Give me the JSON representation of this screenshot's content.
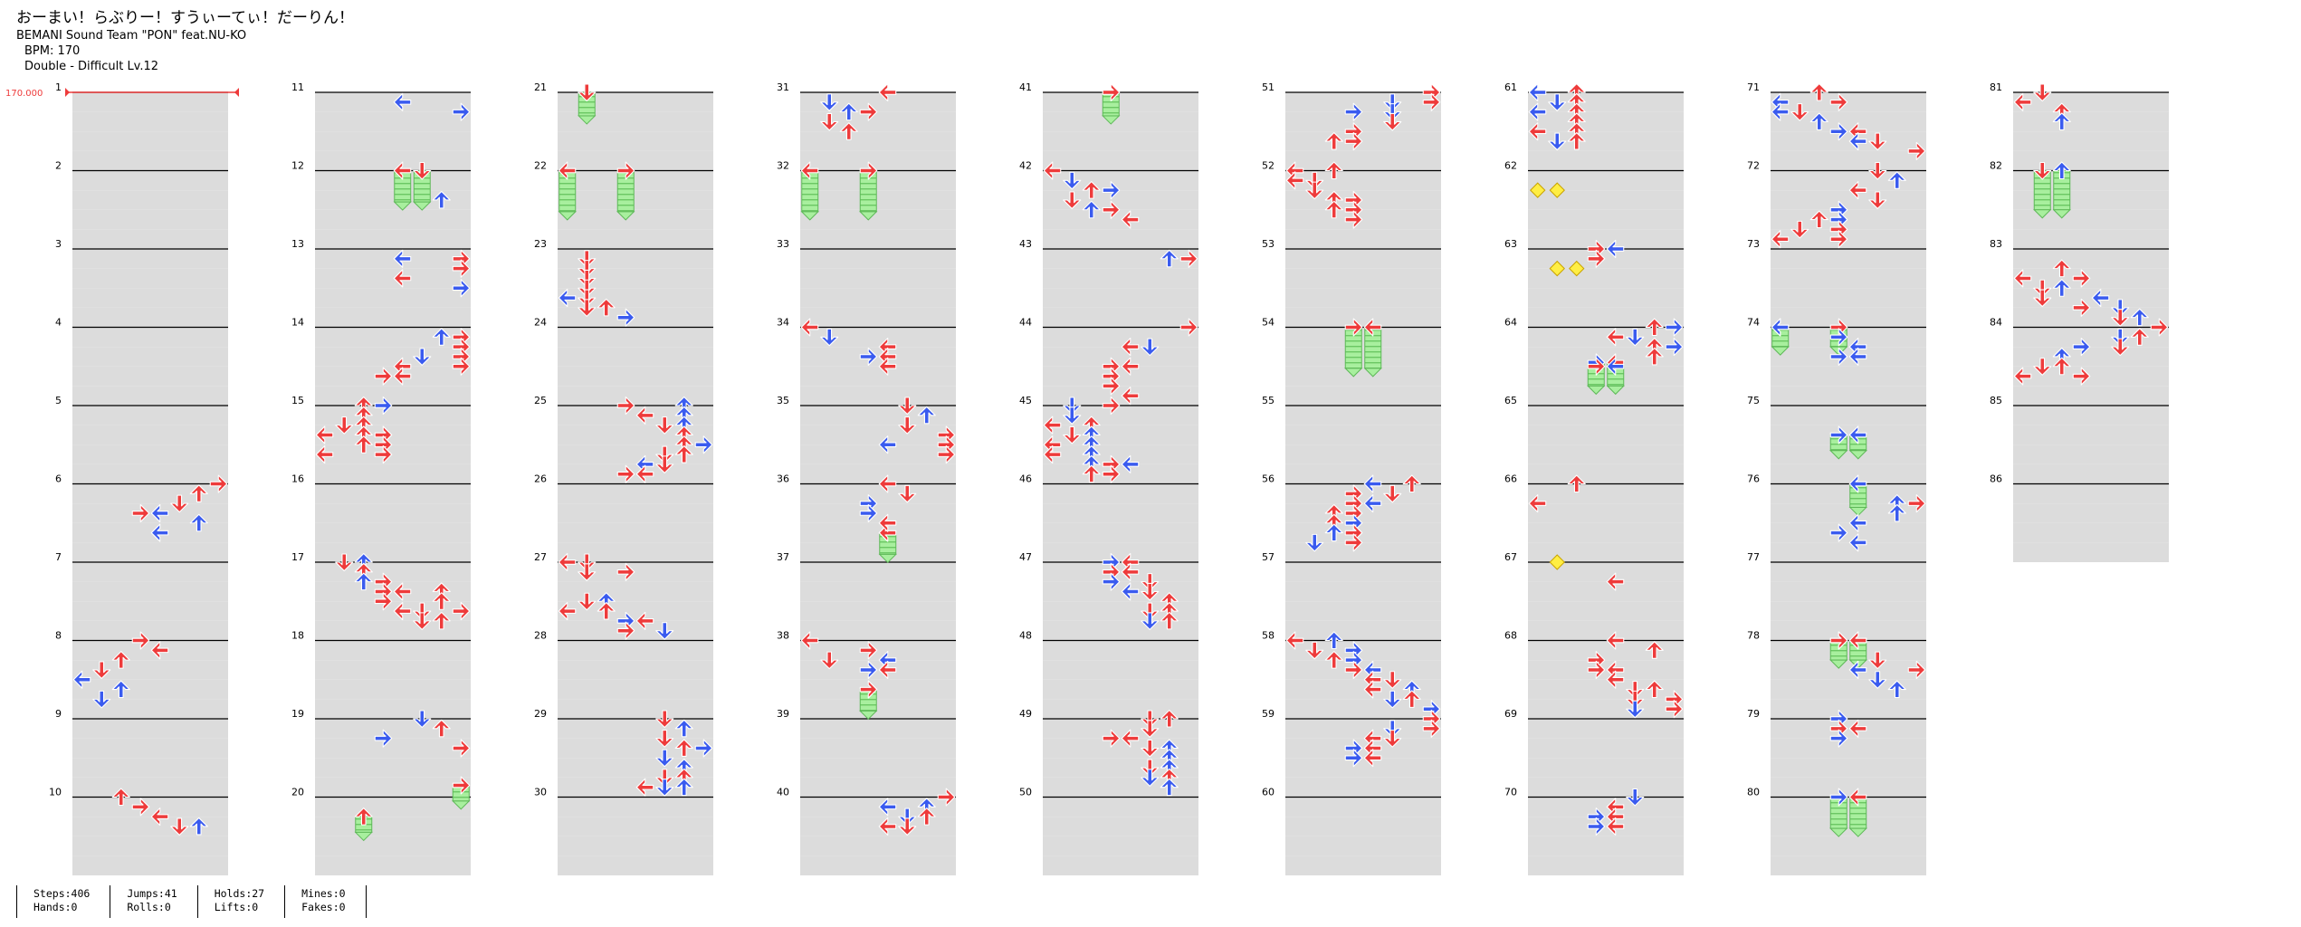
{
  "song": {
    "title": "おーまい！らぶりー！すうぃーてぃ！だーりん！",
    "artist": "BEMANI Sound Team \"PON\" feat.NU-KO",
    "bpm_label": "BPM: 170",
    "difficulty_label": "Double - Difficult  Lv.12"
  },
  "bpm_marker": "170.000",
  "colors": {
    "red": "#ee3b3b",
    "blue": "#3a5bef",
    "hold_fill": "#a8ef9e",
    "hold_stripe": "#6bc764",
    "mine": "#ffee44",
    "band": "#dcdcdc"
  },
  "layout_info": {
    "measure_count": 86,
    "measures_per_column": 10,
    "lanes": 8,
    "note_shapes": "arrow (left/down/up/right), hold (striped green bar), mine (yellow diamond)"
  },
  "notes_visible": {
    "col0": [
      {
        "m": 6,
        "b": 0,
        "t": 7,
        "c": "r"
      },
      {
        "m": 6,
        "b": 0.5,
        "t": 6,
        "c": "r"
      },
      {
        "m": 6,
        "b": 1,
        "t": 5,
        "c": "r"
      },
      {
        "m": 6,
        "b": 1.5,
        "t": 3,
        "c": "r"
      },
      {
        "m": 6,
        "b": 1.5,
        "t": 4,
        "c": "b"
      },
      {
        "m": 6,
        "b": 2,
        "t": 6,
        "c": "b"
      },
      {
        "m": 6,
        "b": 2.5,
        "t": 4,
        "c": "b"
      },
      {
        "m": 8,
        "b": 0,
        "t": 3,
        "c": "r"
      },
      {
        "m": 8,
        "b": 0.5,
        "t": 4,
        "c": "r"
      },
      {
        "m": 8,
        "b": 1,
        "t": 2,
        "c": "r"
      },
      {
        "m": 8,
        "b": 1.5,
        "t": 1,
        "c": "r"
      },
      {
        "m": 8,
        "b": 2,
        "t": 0,
        "c": "b"
      },
      {
        "m": 8,
        "b": 2.5,
        "t": 2,
        "c": "b"
      },
      {
        "m": 8,
        "b": 3,
        "t": 1,
        "c": "b"
      },
      {
        "m": 10,
        "b": 0,
        "t": 2,
        "c": "r"
      },
      {
        "m": 10,
        "b": 0.5,
        "t": 3,
        "c": "r"
      },
      {
        "m": 10,
        "b": 1,
        "t": 4,
        "c": "r"
      },
      {
        "m": 10,
        "b": 1.5,
        "t": 5,
        "c": "r"
      },
      {
        "m": 10,
        "b": 1.5,
        "t": 6,
        "c": "b"
      }
    ]
  },
  "stats": [
    [
      "Steps:406",
      "Hands:0"
    ],
    [
      "Jumps:41",
      "Rolls:0"
    ],
    [
      "Holds:27",
      "Lifts:0"
    ],
    [
      "Mines:0",
      "Fakes:0"
    ]
  ]
}
